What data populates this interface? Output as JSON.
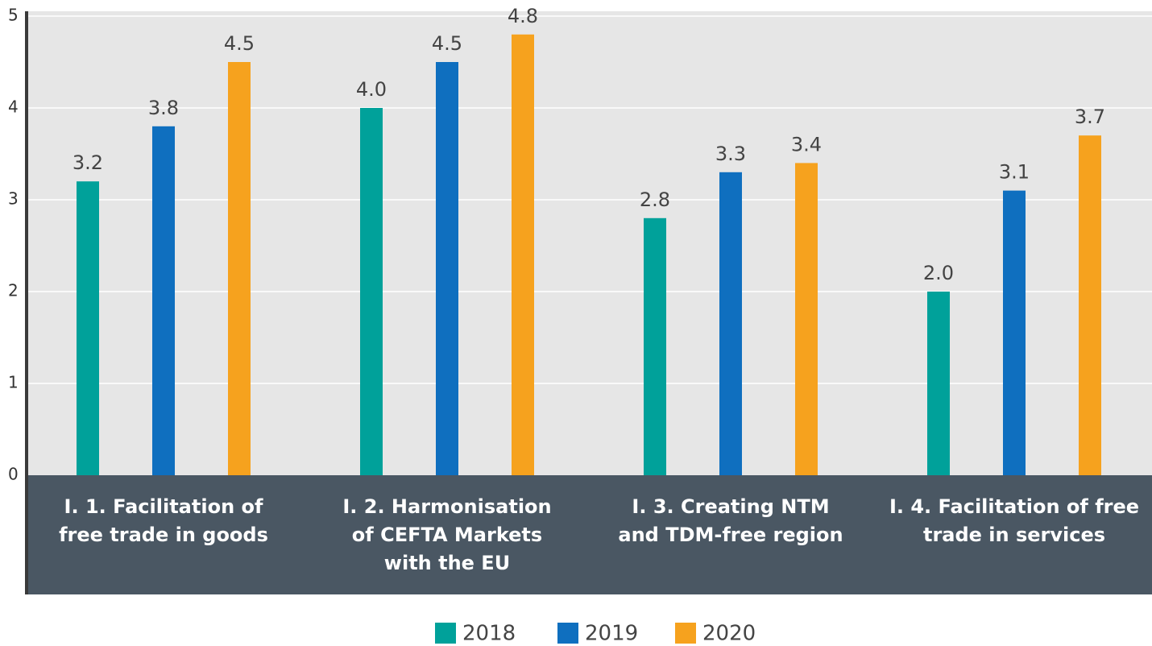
{
  "chart_data": {
    "type": "bar",
    "categories": [
      "I. 1. Facilitation of\nfree trade in goods",
      "I. 2. Harmonisation\nof CEFTA Markets\nwith the EU",
      "I. 3. Creating NTM\nand TDM-free region",
      "I. 4. Facilitation of free\ntrade in services"
    ],
    "series": [
      {
        "name": "2018",
        "color": "#00a19a",
        "values": [
          3.2,
          4.0,
          2.8,
          2.0
        ],
        "value_labels": [
          "3.2",
          "4.0",
          "2.8",
          "2.0"
        ]
      },
      {
        "name": "2019",
        "color": "#0f6fbf",
        "values": [
          3.8,
          4.5,
          3.3,
          3.1
        ],
        "value_labels": [
          "3.8",
          "4.5",
          "3.3",
          "3.1"
        ]
      },
      {
        "name": "2020",
        "color": "#f6a21e",
        "values": [
          4.5,
          4.8,
          3.4,
          3.7
        ],
        "value_labels": [
          "4.5",
          "4.8",
          "3.4",
          "3.7"
        ]
      }
    ],
    "ylim": [
      0,
      5
    ],
    "yticks": [
      0,
      1,
      2,
      3,
      4,
      5
    ],
    "grid": true
  }
}
